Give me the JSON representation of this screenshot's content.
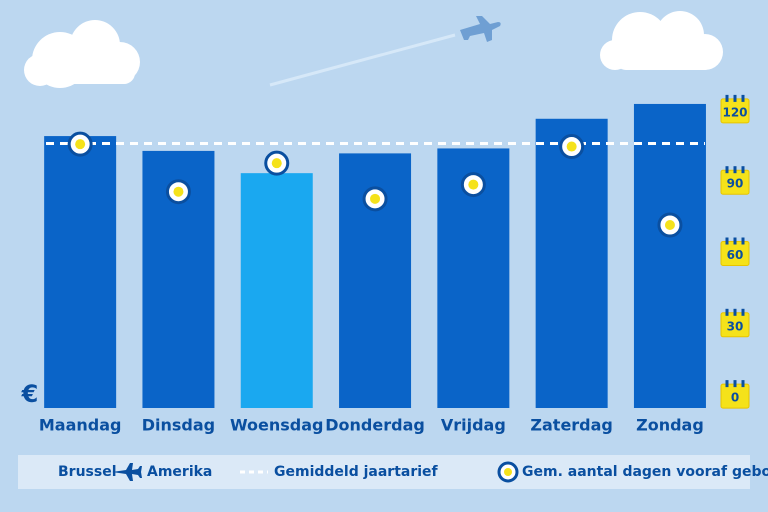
{
  "chart_data": {
    "type": "bar",
    "currency_label": "€",
    "categories": [
      "Maandag",
      "Dinsdag",
      "Woensdag",
      "Donderdag",
      "Vrijdag",
      "Zaterdag",
      "Zondag"
    ],
    "series": [
      {
        "name": "Brussel ✈ Amerika",
        "origin": "Brussel",
        "destination": "Amerika",
        "values": [
          110,
          104,
          95,
          103,
          105,
          117,
          123
        ],
        "colors": [
          "#0a64c8",
          "#0a64c8",
          "#1aa8f0",
          "#0a64c8",
          "#0a64c8",
          "#0a64c8",
          "#0a64c8"
        ]
      },
      {
        "name": "Gem. aantal dagen vooraf geboekt",
        "axis": "y2",
        "color": "#f5e21a",
        "values": [
          106,
          86,
          98,
          83,
          89,
          105,
          72
        ]
      }
    ],
    "average": {
      "name": "Gemiddeld jaartarief",
      "value": 107,
      "color": "#ffffff"
    },
    "ylim": [
      0,
      125
    ],
    "y2lim": [
      -5,
      125
    ],
    "y2ticks": [
      0,
      30,
      60,
      90,
      120
    ]
  }
}
